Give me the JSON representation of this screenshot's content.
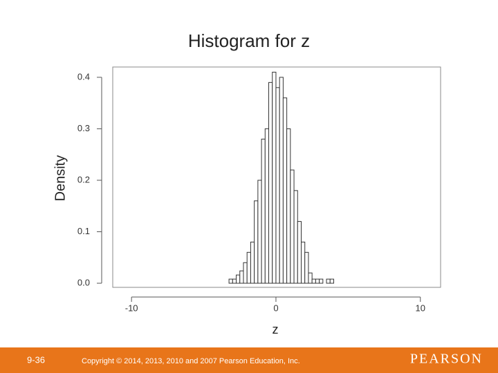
{
  "chart_data": {
    "type": "histogram",
    "title": "Histogram for z",
    "xlabel": "z",
    "ylabel": "Density",
    "bins": [
      -3.25,
      -3.0,
      -2.75,
      -2.5,
      -2.25,
      -2.0,
      -1.75,
      -1.5,
      -1.25,
      -1.0,
      -0.75,
      -0.5,
      -0.25,
      0,
      0.25,
      0.5,
      0.75,
      1.0,
      1.25,
      1.5,
      1.75,
      2.0,
      2.25,
      2.5,
      2.75,
      3.0,
      3.25,
      3.5,
      3.75,
      4.0
    ],
    "values": [
      0.008,
      0.008,
      0.016,
      0.024,
      0.04,
      0.06,
      0.08,
      0.16,
      0.2,
      0.28,
      0.3,
      0.39,
      0.41,
      0.38,
      0.4,
      0.36,
      0.3,
      0.22,
      0.18,
      0.12,
      0.08,
      0.06,
      0.02,
      0.008,
      0.008,
      0.008,
      0,
      0.008,
      0.008
    ],
    "color": "#333333",
    "xlim": [
      -11.3,
      11.4
    ],
    "ylim": [
      -0.008,
      0.42
    ],
    "xticks": [
      -10,
      0,
      10
    ],
    "yticks": [
      {
        "value": 0,
        "label": "0.0"
      },
      0.1,
      0.2,
      0.3,
      0.4
    ]
  },
  "footer": {
    "slide_number": "9-36",
    "copyright": "Copyright © 2014, 2013, 2010 and 2007 Pearson Education, Inc.",
    "brand": "PEARSON"
  }
}
